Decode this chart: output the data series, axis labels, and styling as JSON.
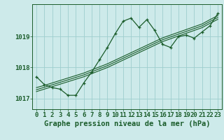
{
  "title": "Graphe pression niveau de la mer (hPa)",
  "background_color": "#cdeaea",
  "plot_bg_color": "#cdeaea",
  "grid_color": "#9ecece",
  "line_color": "#1a5c2a",
  "marker_color": "#1a5c2a",
  "x_values": [
    0,
    1,
    2,
    3,
    4,
    5,
    6,
    7,
    8,
    9,
    10,
    11,
    12,
    13,
    14,
    15,
    16,
    17,
    18,
    19,
    20,
    21,
    22,
    23
  ],
  "main_line": [
    1017.7,
    1017.45,
    1017.35,
    1017.3,
    1017.1,
    1017.1,
    1017.5,
    1017.85,
    1018.25,
    1018.65,
    1019.1,
    1019.5,
    1019.6,
    1019.3,
    1019.55,
    1019.2,
    1018.75,
    1018.65,
    1019.0,
    1019.05,
    1018.95,
    1019.15,
    1019.35,
    1019.75
  ],
  "trend_line1": [
    1017.35,
    1017.42,
    1017.5,
    1017.58,
    1017.66,
    1017.74,
    1017.82,
    1017.92,
    1018.02,
    1018.12,
    1018.24,
    1018.36,
    1018.48,
    1018.6,
    1018.72,
    1018.84,
    1018.96,
    1019.05,
    1019.14,
    1019.23,
    1019.32,
    1019.41,
    1019.55,
    1019.68
  ],
  "trend_line2": [
    1017.28,
    1017.36,
    1017.44,
    1017.52,
    1017.6,
    1017.68,
    1017.76,
    1017.86,
    1017.96,
    1018.06,
    1018.18,
    1018.3,
    1018.42,
    1018.54,
    1018.66,
    1018.78,
    1018.9,
    1018.99,
    1019.08,
    1019.17,
    1019.26,
    1019.35,
    1019.49,
    1019.62
  ],
  "trend_line3": [
    1017.22,
    1017.3,
    1017.38,
    1017.46,
    1017.54,
    1017.62,
    1017.7,
    1017.8,
    1017.9,
    1018.0,
    1018.12,
    1018.24,
    1018.36,
    1018.48,
    1018.6,
    1018.72,
    1018.84,
    1018.93,
    1019.02,
    1019.11,
    1019.2,
    1019.29,
    1019.43,
    1019.56
  ],
  "ylim": [
    1016.65,
    1020.05
  ],
  "yticks": [
    1017,
    1018,
    1019
  ],
  "tick_fontsize": 6.5,
  "title_fontsize": 7.5
}
